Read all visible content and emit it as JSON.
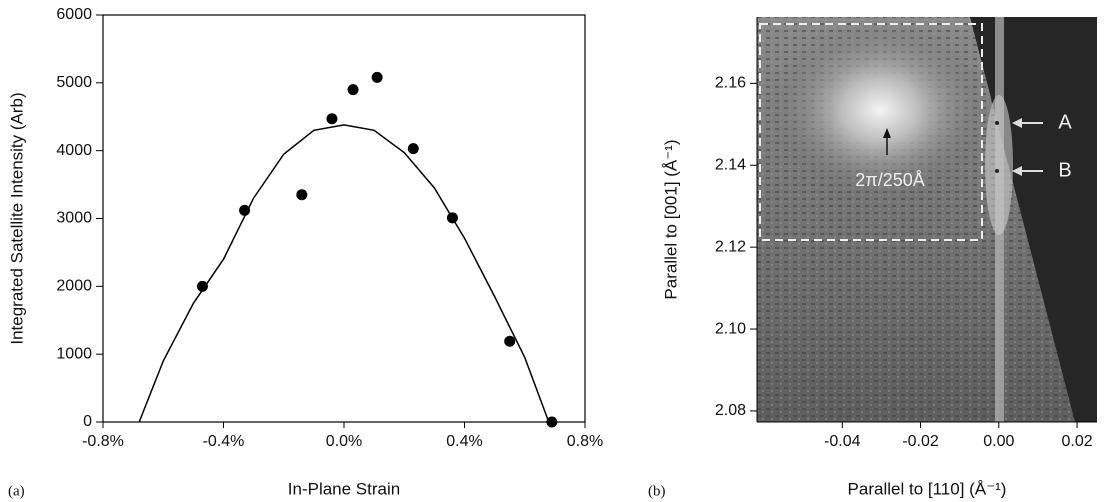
{
  "chart_data": [
    {
      "type": "scatter",
      "panel_label": "(a)",
      "x_label": "In-Plane Strain",
      "y_label": "Integrated Satellite Intensity (Arb)",
      "xlim": [
        -0.8,
        0.8
      ],
      "xticks": [
        {
          "value": -0.8,
          "label": "-0.8%"
        },
        {
          "value": -0.4,
          "label": "-0.4%"
        },
        {
          "value": 0,
          "label": "0.0%"
        },
        {
          "value": 0.4,
          "label": "0.4%"
        },
        {
          "value": 0.8,
          "label": "0.8%"
        }
      ],
      "ylim": [
        0,
        6000
      ],
      "yticks": [
        0,
        1000,
        2000,
        3000,
        4000,
        5000,
        6000
      ],
      "series": [
        {
          "kind": "scatter",
          "color": "#000000",
          "x": [
            -0.47,
            -0.33,
            -0.14,
            -0.04,
            0.03,
            0.11,
            0.23,
            0.36,
            0.55,
            0.69
          ],
          "values": [
            2000,
            3120,
            3350,
            4470,
            4900,
            5080,
            4030,
            3010,
            1190,
            0
          ]
        },
        {
          "kind": "line",
          "color": "#000000",
          "x": [
            -0.68,
            -0.6,
            -0.5,
            -0.4,
            -0.3,
            -0.2,
            -0.1,
            0,
            0.1,
            0.2,
            0.3,
            0.4,
            0.5,
            0.6,
            0.68
          ],
          "values": [
            0,
            900,
            1750,
            2400,
            3300,
            3950,
            4300,
            4380,
            4300,
            3970,
            3450,
            2710,
            1850,
            950,
            0
          ]
        }
      ]
    },
    {
      "type": "image",
      "panel_label": "(b)",
      "x_label": "Parallel to [110] (Å⁻¹)",
      "y_label": "Parallel to [001] (Å⁻¹)",
      "xlim": [
        -0.0618,
        0.0251
      ],
      "xticks": [
        -0.04,
        -0.02,
        {
          "value": 0,
          "label": "0.00"
        },
        0.02
      ],
      "ylim": [
        2.0773,
        2.1762
      ],
      "yticks": [
        2.08,
        {
          "value": 2.1,
          "label": "2.10"
        },
        2.12,
        2.14,
        2.16
      ],
      "annotations": [
        "2π/250Å",
        "A",
        "B"
      ]
    }
  ]
}
